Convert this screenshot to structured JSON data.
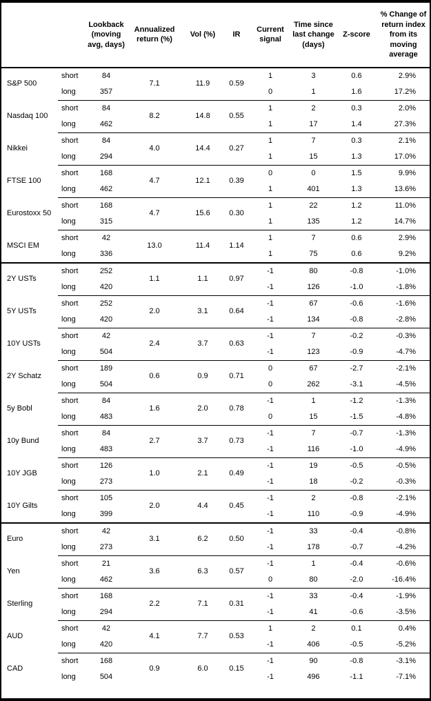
{
  "table": {
    "columns": [
      "",
      "",
      "Lookback (moving avg, days)",
      "Annualized return (%)",
      "Vol (%)",
      "IR",
      "Current signal",
      "Time since last change (days)",
      "Z-score",
      "% Change of return index from its moving average"
    ],
    "row_labels": {
      "short": "short",
      "long": "long"
    },
    "sections": [
      [
        {
          "name": "S&P 500",
          "annualized_return": "7.1",
          "vol": "11.9",
          "ir": "0.59",
          "short": {
            "lookback": "84",
            "signal": "1",
            "days_since_change": "3",
            "z_score": "0.6",
            "pct_change": "2.9%"
          },
          "long": {
            "lookback": "357",
            "signal": "0",
            "days_since_change": "1",
            "z_score": "1.6",
            "pct_change": "17.2%"
          }
        },
        {
          "name": "Nasdaq 100",
          "annualized_return": "8.2",
          "vol": "14.8",
          "ir": "0.55",
          "short": {
            "lookback": "84",
            "signal": "1",
            "days_since_change": "2",
            "z_score": "0.3",
            "pct_change": "2.0%"
          },
          "long": {
            "lookback": "462",
            "signal": "1",
            "days_since_change": "17",
            "z_score": "1.4",
            "pct_change": "27.3%"
          }
        },
        {
          "name": "Nikkei",
          "annualized_return": "4.0",
          "vol": "14.4",
          "ir": "0.27",
          "short": {
            "lookback": "84",
            "signal": "1",
            "days_since_change": "7",
            "z_score": "0.3",
            "pct_change": "2.1%"
          },
          "long": {
            "lookback": "294",
            "signal": "1",
            "days_since_change": "15",
            "z_score": "1.3",
            "pct_change": "17.0%"
          }
        },
        {
          "name": "FTSE 100",
          "annualized_return": "4.7",
          "vol": "12.1",
          "ir": "0.39",
          "short": {
            "lookback": "168",
            "signal": "0",
            "days_since_change": "0",
            "z_score": "1.5",
            "pct_change": "9.9%"
          },
          "long": {
            "lookback": "462",
            "signal": "1",
            "days_since_change": "401",
            "z_score": "1.3",
            "pct_change": "13.6%"
          }
        },
        {
          "name": "Eurostoxx 50",
          "annualized_return": "4.7",
          "vol": "15.6",
          "ir": "0.30",
          "short": {
            "lookback": "168",
            "signal": "1",
            "days_since_change": "22",
            "z_score": "1.2",
            "pct_change": "11.0%"
          },
          "long": {
            "lookback": "315",
            "signal": "1",
            "days_since_change": "135",
            "z_score": "1.2",
            "pct_change": "14.7%"
          }
        },
        {
          "name": "MSCI EM",
          "annualized_return": "13.0",
          "vol": "11.4",
          "ir": "1.14",
          "short": {
            "lookback": "42",
            "signal": "1",
            "days_since_change": "7",
            "z_score": "0.6",
            "pct_change": "2.9%"
          },
          "long": {
            "lookback": "336",
            "signal": "1",
            "days_since_change": "75",
            "z_score": "0.6",
            "pct_change": "9.2%"
          }
        }
      ],
      [
        {
          "name": "2Y USTs",
          "annualized_return": "1.1",
          "vol": "1.1",
          "ir": "0.97",
          "short": {
            "lookback": "252",
            "signal": "-1",
            "days_since_change": "80",
            "z_score": "-0.8",
            "pct_change": "-1.0%"
          },
          "long": {
            "lookback": "420",
            "signal": "-1",
            "days_since_change": "126",
            "z_score": "-1.0",
            "pct_change": "-1.8%"
          }
        },
        {
          "name": "5Y USTs",
          "annualized_return": "2.0",
          "vol": "3.1",
          "ir": "0.64",
          "short": {
            "lookback": "252",
            "signal": "-1",
            "days_since_change": "67",
            "z_score": "-0.6",
            "pct_change": "-1.6%"
          },
          "long": {
            "lookback": "420",
            "signal": "-1",
            "days_since_change": "134",
            "z_score": "-0.8",
            "pct_change": "-2.8%"
          }
        },
        {
          "name": "10Y USTs",
          "annualized_return": "2.4",
          "vol": "3.7",
          "ir": "0.63",
          "short": {
            "lookback": "42",
            "signal": "-1",
            "days_since_change": "7",
            "z_score": "-0.2",
            "pct_change": "-0.3%"
          },
          "long": {
            "lookback": "504",
            "signal": "-1",
            "days_since_change": "123",
            "z_score": "-0.9",
            "pct_change": "-4.7%"
          }
        },
        {
          "name": "2Y Schatz",
          "annualized_return": "0.6",
          "vol": "0.9",
          "ir": "0.71",
          "short": {
            "lookback": "189",
            "signal": "0",
            "days_since_change": "67",
            "z_score": "-2.7",
            "pct_change": "-2.1%"
          },
          "long": {
            "lookback": "504",
            "signal": "0",
            "days_since_change": "262",
            "z_score": "-3.1",
            "pct_change": "-4.5%"
          }
        },
        {
          "name": "5y Bobl",
          "annualized_return": "1.6",
          "vol": "2.0",
          "ir": "0.78",
          "short": {
            "lookback": "84",
            "signal": "-1",
            "days_since_change": "1",
            "z_score": "-1.2",
            "pct_change": "-1.3%"
          },
          "long": {
            "lookback": "483",
            "signal": "0",
            "days_since_change": "15",
            "z_score": "-1.5",
            "pct_change": "-4.8%"
          }
        },
        {
          "name": "10y Bund",
          "annualized_return": "2.7",
          "vol": "3.7",
          "ir": "0.73",
          "short": {
            "lookback": "84",
            "signal": "-1",
            "days_since_change": "7",
            "z_score": "-0.7",
            "pct_change": "-1.3%"
          },
          "long": {
            "lookback": "483",
            "signal": "-1",
            "days_since_change": "116",
            "z_score": "-1.0",
            "pct_change": "-4.9%"
          }
        },
        {
          "name": "10Y JGB",
          "annualized_return": "1.0",
          "vol": "2.1",
          "ir": "0.49",
          "short": {
            "lookback": "126",
            "signal": "-1",
            "days_since_change": "19",
            "z_score": "-0.5",
            "pct_change": "-0.5%"
          },
          "long": {
            "lookback": "273",
            "signal": "-1",
            "days_since_change": "18",
            "z_score": "-0.2",
            "pct_change": "-0.3%"
          }
        },
        {
          "name": "10Y Gilts",
          "annualized_return": "2.0",
          "vol": "4.4",
          "ir": "0.45",
          "short": {
            "lookback": "105",
            "signal": "-1",
            "days_since_change": "2",
            "z_score": "-0.8",
            "pct_change": "-2.1%"
          },
          "long": {
            "lookback": "399",
            "signal": "-1",
            "days_since_change": "110",
            "z_score": "-0.9",
            "pct_change": "-4.9%"
          }
        }
      ],
      [
        {
          "name": "Euro",
          "annualized_return": "3.1",
          "vol": "6.2",
          "ir": "0.50",
          "short": {
            "lookback": "42",
            "signal": "-1",
            "days_since_change": "33",
            "z_score": "-0.4",
            "pct_change": "-0.8%"
          },
          "long": {
            "lookback": "273",
            "signal": "-1",
            "days_since_change": "178",
            "z_score": "-0.7",
            "pct_change": "-4.2%"
          }
        },
        {
          "name": "Yen",
          "annualized_return": "3.6",
          "vol": "6.3",
          "ir": "0.57",
          "short": {
            "lookback": "21",
            "signal": "-1",
            "days_since_change": "1",
            "z_score": "-0.4",
            "pct_change": "-0.6%"
          },
          "long": {
            "lookback": "462",
            "signal": "0",
            "days_since_change": "80",
            "z_score": "-2.0",
            "pct_change": "-16.4%"
          }
        },
        {
          "name": "Sterling",
          "annualized_return": "2.2",
          "vol": "7.1",
          "ir": "0.31",
          "short": {
            "lookback": "168",
            "signal": "-1",
            "days_since_change": "33",
            "z_score": "-0.4",
            "pct_change": "-1.9%"
          },
          "long": {
            "lookback": "294",
            "signal": "-1",
            "days_since_change": "41",
            "z_score": "-0.6",
            "pct_change": "-3.5%"
          }
        },
        {
          "name": "AUD",
          "annualized_return": "4.1",
          "vol": "7.7",
          "ir": "0.53",
          "short": {
            "lookback": "42",
            "signal": "1",
            "days_since_change": "2",
            "z_score": "0.1",
            "pct_change": "0.4%"
          },
          "long": {
            "lookback": "420",
            "signal": "-1",
            "days_since_change": "406",
            "z_score": "-0.5",
            "pct_change": "-5.2%"
          }
        },
        {
          "name": "CAD",
          "annualized_return": "0.9",
          "vol": "6.0",
          "ir": "0.15",
          "short": {
            "lookback": "168",
            "signal": "-1",
            "days_since_change": "90",
            "z_score": "-0.8",
            "pct_change": "-3.1%"
          },
          "long": {
            "lookback": "504",
            "signal": "-1",
            "days_since_change": "496",
            "z_score": "-1.1",
            "pct_change": "-7.1%"
          }
        }
      ]
    ]
  }
}
